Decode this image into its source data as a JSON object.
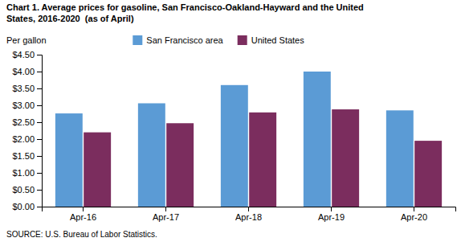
{
  "chart_data": {
    "type": "bar",
    "title": "Chart 1. Average prices for gasoline, San Francisco-Oakland-Hayward and the United\nStates, 2016-2020  (as of April)",
    "ylabel": "Per gallon",
    "annotations": [
      "SOURCE: U.S. Bureau of Labor Statistics."
    ],
    "categories": [
      "Apr-16",
      "Apr-17",
      "Apr-18",
      "Apr-19",
      "Apr-20"
    ],
    "series": [
      {
        "name": "San Francisco area",
        "color": "#5B9BD5",
        "values": [
          2.76,
          3.06,
          3.6,
          4.0,
          2.85
        ]
      },
      {
        "name": "United States",
        "color": "#7B2D5E",
        "values": [
          2.2,
          2.47,
          2.79,
          2.88,
          1.95
        ]
      }
    ],
    "ylim": [
      0,
      4.5
    ],
    "yticks": [
      {
        "value": 0.0,
        "label": "$0.00"
      },
      {
        "value": 0.5,
        "label": "$0.50"
      },
      {
        "value": 1.0,
        "label": "$1.00"
      },
      {
        "value": 1.5,
        "label": "$1.50"
      },
      {
        "value": 2.0,
        "label": "$2.00"
      },
      {
        "value": 2.5,
        "label": "$2.50"
      },
      {
        "value": 3.0,
        "label": "$3.00"
      },
      {
        "value": 3.5,
        "label": "$3.50"
      },
      {
        "value": 4.0,
        "label": "$4.00"
      },
      {
        "value": 4.5,
        "label": "$4.50"
      }
    ],
    "grid": false,
    "legend": "top"
  }
}
